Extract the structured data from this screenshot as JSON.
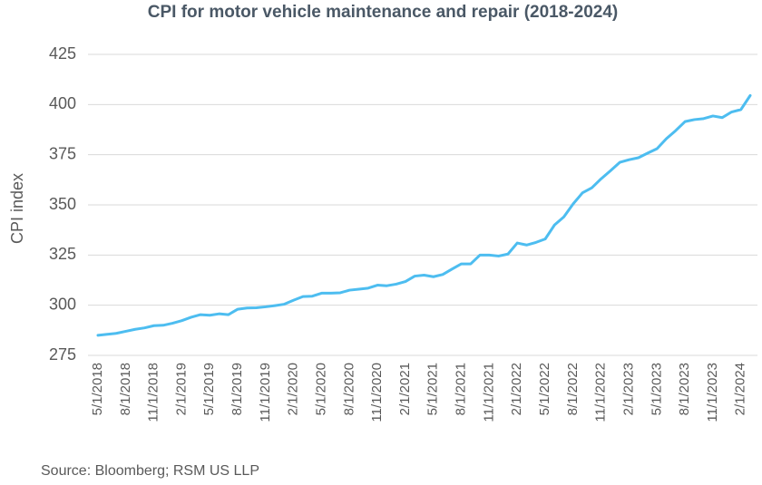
{
  "chart_data": {
    "type": "line",
    "title": "CPI for motor vehicle maintenance and repair (2018-2024)",
    "y_label": "CPI index",
    "source": "Source: Bloomberg; RSM US LLP",
    "categories": [
      "5/1/2018",
      null,
      null,
      "8/1/2018",
      null,
      null,
      "11/1/2018",
      null,
      null,
      "2/1/2019",
      null,
      null,
      "5/1/2019",
      null,
      null,
      "8/1/2019",
      null,
      null,
      "11/1/2019",
      null,
      null,
      "2/1/2020",
      null,
      null,
      "5/1/2020",
      null,
      null,
      "8/1/2020",
      null,
      null,
      "11/1/2020",
      null,
      null,
      "2/1/2021",
      null,
      null,
      "5/1/2021",
      null,
      null,
      "8/1/2021",
      null,
      null,
      "11/1/2021",
      null,
      null,
      "2/1/2022",
      null,
      null,
      "5/1/2022",
      null,
      null,
      "8/1/2022",
      null,
      null,
      "11/1/2022",
      null,
      null,
      "2/1/2023",
      null,
      null,
      "5/1/2023",
      null,
      null,
      "8/1/2023",
      null,
      null,
      "11/1/2023",
      null,
      null,
      "2/1/2024",
      null
    ],
    "series": [
      {
        "name": "CPI index",
        "color": "#4dbdf0",
        "values": [
          285.0,
          285.5,
          286.0,
          287.0,
          288.0,
          288.7,
          289.8,
          290.0,
          291.0,
          292.3,
          294.0,
          295.3,
          295.0,
          295.7,
          295.3,
          298.0,
          298.6,
          298.7,
          299.2,
          299.8,
          300.5,
          302.5,
          304.3,
          304.5,
          306.0,
          306.0,
          306.2,
          307.5,
          308.0,
          308.5,
          310.0,
          309.7,
          310.5,
          311.8,
          314.5,
          315.0,
          314.2,
          315.3,
          318.0,
          320.6,
          320.6,
          325.0,
          325.0,
          324.5,
          325.5,
          331.0,
          330.0,
          331.3,
          333.0,
          340.0,
          344.0,
          350.5,
          356.0,
          358.5,
          363.0,
          367.0,
          371.2,
          372.5,
          373.5,
          375.8,
          378.0,
          383.0,
          387.0,
          391.5,
          392.5,
          393.0,
          394.3,
          393.5,
          396.3,
          397.5,
          404.5
        ]
      }
    ],
    "ylim": [
      275,
      425
    ],
    "yticks": [
      275,
      300,
      325,
      350,
      375,
      400,
      425
    ],
    "grid": true
  }
}
